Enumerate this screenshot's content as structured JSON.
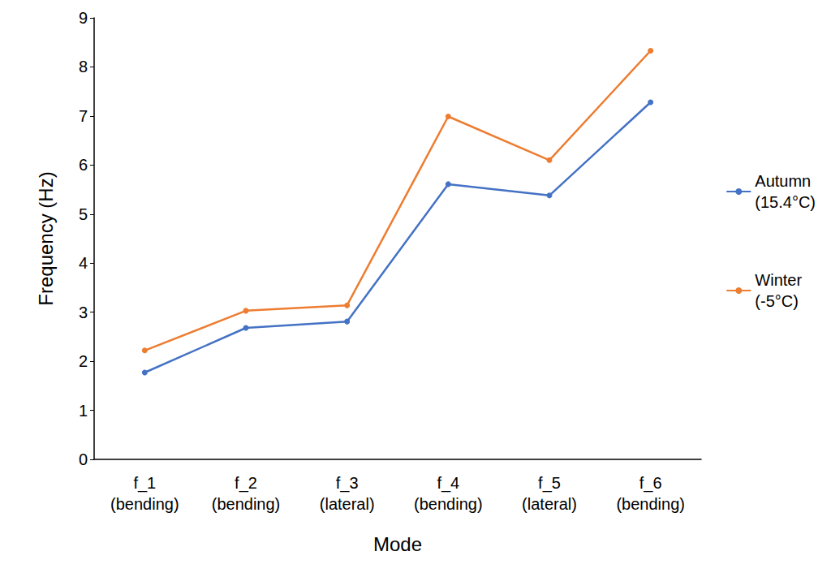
{
  "chart_data": {
    "type": "line",
    "x_label": "Mode",
    "y_label": "Frequency (Hz)",
    "categories": [
      "f_1\n(bending)",
      "f_2\n(bending)",
      "f_3\n(lateral)",
      "f_4\n(bending)",
      "f_5\n(lateral)",
      "f_6\n(bending)"
    ],
    "series": [
      {
        "name": "Autumn\n(15.4°C)",
        "color": "#4472c4",
        "values": [
          1.77,
          2.68,
          2.81,
          5.61,
          5.38,
          7.28
        ]
      },
      {
        "name": "Winter\n(-5°C)",
        "color": "#ed7d31",
        "values": [
          2.22,
          3.03,
          3.14,
          6.99,
          6.1,
          8.33
        ]
      }
    ],
    "ylim": [
      0,
      9
    ],
    "yticks": [
      0,
      1,
      2,
      3,
      4,
      5,
      6,
      7,
      8,
      9
    ],
    "grid": false,
    "legend": "right",
    "marker": "circle"
  }
}
